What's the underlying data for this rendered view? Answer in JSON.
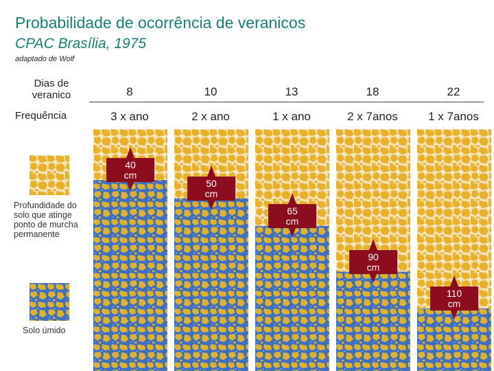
{
  "header": {
    "title": "Probabilidade de ocorrência de veranicos",
    "subtitle": "CPAC Brasília, 1975",
    "note": "adaptado de Wolf"
  },
  "rows": {
    "days_label": "Dias de veranico",
    "frequency_label": "Frequência"
  },
  "columns": [
    {
      "days": "8",
      "frequency": "3 x ano",
      "depth_cm": 40,
      "depth_label": [
        "40",
        "cm"
      ]
    },
    {
      "days": "10",
      "frequency": "2 x ano",
      "depth_cm": 50,
      "depth_label": [
        "50",
        "cm"
      ]
    },
    {
      "days": "13",
      "frequency": "1 x ano",
      "depth_cm": 65,
      "depth_label": [
        "65",
        "cm"
      ]
    },
    {
      "days": "18",
      "frequency": "2 x 7anos",
      "depth_cm": 90,
      "depth_label": [
        "90",
        "cm"
      ]
    },
    {
      "days": "22",
      "frequency": "1 x 7anos",
      "depth_cm": 110,
      "depth_label": [
        "110",
        "cm"
      ]
    }
  ],
  "legend": {
    "dry_label": "Profundidade do solo que atinge ponto de murcha permanente",
    "wet_label": "Solo úmido"
  },
  "colors": {
    "title": "#1a7f74",
    "dry_soil": "#e7b12a",
    "dry_cell": "#f3e2b8",
    "wet_soil": "#3f6fc0",
    "wet_fill": "#dcb230",
    "callout": "#8b0d1e"
  }
}
